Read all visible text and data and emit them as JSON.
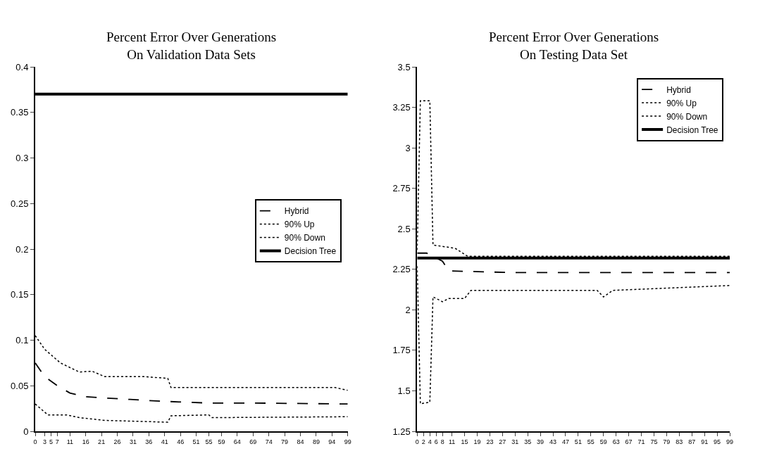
{
  "chart_data": [
    {
      "type": "line",
      "title": "Percent Error Over Generations\nOn Validation Data Sets",
      "xlim": [
        0,
        99
      ],
      "xticks": [
        0,
        3,
        5,
        7,
        11,
        16,
        21,
        26,
        31,
        36,
        41,
        46,
        51,
        55,
        59,
        64,
        69,
        74,
        79,
        84,
        89,
        94,
        99
      ],
      "ylim": [
        0,
        0.4
      ],
      "yticks": [
        0,
        0.05,
        0.1,
        0.15,
        0.2,
        0.25,
        0.3,
        0.35,
        0.4
      ],
      "legend": "right",
      "marker": "none",
      "series": [
        {
          "name": "Hybrid",
          "color": "#000000",
          "line_style": "dashed",
          "x": [
            0,
            3,
            7,
            11,
            16,
            20,
            30,
            40,
            55,
            70,
            99
          ],
          "values": [
            0.075,
            0.06,
            0.05,
            0.042,
            0.038,
            0.037,
            0.035,
            0.033,
            0.031,
            0.031,
            0.03
          ]
        },
        {
          "name": "90% Up",
          "color": "#000000",
          "line_style": "dotted",
          "x": [
            0,
            3,
            8,
            14,
            18,
            22,
            35,
            42,
            43,
            60,
            95,
            99
          ],
          "values": [
            0.105,
            0.09,
            0.075,
            0.065,
            0.066,
            0.06,
            0.06,
            0.058,
            0.048,
            0.048,
            0.048,
            0.045
          ]
        },
        {
          "name": "90% Down",
          "color": "#000000",
          "line_style": "dotted",
          "x": [
            0,
            4,
            10,
            14,
            22,
            42,
            43,
            55,
            56,
            99
          ],
          "values": [
            0.03,
            0.018,
            0.018,
            0.015,
            0.012,
            0.01,
            0.017,
            0.018,
            0.015,
            0.016
          ]
        },
        {
          "name": "Decision Tree",
          "color": "#000000",
          "line_style": "solid",
          "x": [
            0,
            99
          ],
          "values": [
            0.37,
            0.37
          ]
        }
      ]
    },
    {
      "type": "line",
      "title": "Percent Error Over Generations\nOn Testing Data Set",
      "xlim": [
        0,
        99
      ],
      "xticks": [
        0,
        2,
        4,
        6,
        8,
        11,
        15,
        19,
        23,
        27,
        31,
        35,
        39,
        43,
        47,
        51,
        55,
        59,
        63,
        67,
        71,
        75,
        79,
        83,
        87,
        91,
        95,
        99
      ],
      "ylim": [
        1.25,
        3.5
      ],
      "yticks": [
        1.25,
        1.5,
        1.75,
        2,
        2.25,
        2.5,
        2.75,
        3,
        3.25,
        3.5
      ],
      "legend": "top right",
      "marker": "none",
      "series": [
        {
          "name": "Hybrid",
          "color": "#000000",
          "line_style": "dashed",
          "x": [
            0,
            3,
            8,
            10,
            30,
            60,
            99
          ],
          "values": [
            2.35,
            2.35,
            2.3,
            2.24,
            2.23,
            2.23,
            2.23
          ]
        },
        {
          "name": "90% Up",
          "color": "#000000",
          "line_style": "dotted",
          "x": [
            0,
            1,
            4,
            5,
            12,
            16,
            99
          ],
          "values": [
            2.37,
            3.29,
            3.29,
            2.4,
            2.38,
            2.33,
            2.33
          ]
        },
        {
          "name": "90% Down",
          "color": "#000000",
          "line_style": "dotted",
          "x": [
            0,
            1,
            4,
            5,
            8,
            10,
            15,
            17,
            57,
            59,
            62,
            99
          ],
          "values": [
            2.27,
            1.42,
            1.43,
            2.08,
            2.05,
            2.07,
            2.07,
            2.12,
            2.12,
            2.08,
            2.12,
            2.15
          ]
        },
        {
          "name": "Decision Tree",
          "color": "#000000",
          "line_style": "solid",
          "x": [
            0,
            99
          ],
          "values": [
            2.32,
            2.32
          ]
        }
      ]
    }
  ]
}
